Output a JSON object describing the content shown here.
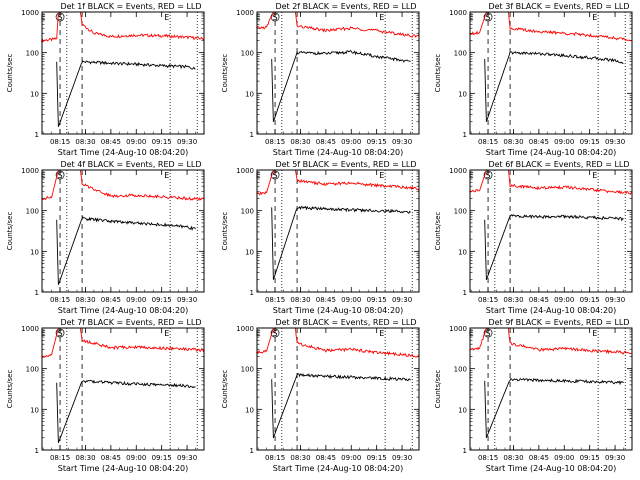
{
  "chart_data": [
    {
      "type": "line",
      "title": "Det 1f BLACK = Events, RED = LLD",
      "xlabel": "Start Time (24-Aug-10 08:04:20)",
      "ylabel": "Counts/sec",
      "x_ticks": [
        "08:15",
        "08:30",
        "08:45",
        "09:00",
        "09:15",
        "09:30"
      ],
      "y_ticks": [
        "1",
        "10",
        "100",
        "1000"
      ],
      "yscale": "log",
      "ylim": [
        1,
        1000
      ],
      "xlim": [
        "08:04:20",
        "09:40"
      ],
      "markers": [
        {
          "label": "E",
          "x": "08:05"
        },
        {
          "label": "S",
          "x": "08:15"
        },
        {
          "label": "E",
          "x": "09:18"
        }
      ],
      "series": [
        {
          "color": "#ff0000",
          "points": [
            [
              "08:04",
              200
            ],
            [
              "08:10",
              210
            ],
            [
              "08:13",
              220
            ],
            [
              "08:14",
              1000
            ],
            [
              "08:27",
              1000
            ],
            [
              "08:28",
              500
            ],
            [
              "08:35",
              300
            ],
            [
              "08:45",
              250
            ],
            [
              "09:00",
              270
            ],
            [
              "09:15",
              260
            ],
            [
              "09:30",
              240
            ],
            [
              "09:40",
              220
            ]
          ]
        },
        {
          "color": "#000000",
          "points": [
            [
              "08:13",
              60
            ],
            [
              "08:14",
              1.5
            ],
            [
              "08:28",
              60
            ],
            [
              "08:45",
              55
            ],
            [
              "09:00",
              52
            ],
            [
              "09:15",
              48
            ],
            [
              "09:30",
              45
            ],
            [
              "09:35",
              40
            ]
          ]
        }
      ]
    },
    {
      "type": "line",
      "title": "Det 2f BLACK = Events, RED = LLD",
      "xlabel": "Start Time (24-Aug-10 08:04:20)",
      "ylabel": "Counts/sec",
      "x_ticks": [
        "08:15",
        "08:30",
        "08:45",
        "09:00",
        "09:15",
        "09:30"
      ],
      "y_ticks": [
        "1",
        "10",
        "100",
        "1000"
      ],
      "yscale": "log",
      "ylim": [
        1,
        1000
      ],
      "xlim": [
        "08:04:20",
        "09:40"
      ],
      "markers": [
        {
          "label": "E",
          "x": "08:05"
        },
        {
          "label": "S",
          "x": "08:15"
        },
        {
          "label": "E",
          "x": "09:18"
        }
      ],
      "series": [
        {
          "color": "#ff0000",
          "points": [
            [
              "08:04",
              400
            ],
            [
              "08:10",
              420
            ],
            [
              "08:14",
              1000
            ],
            [
              "08:27",
              1000
            ],
            [
              "08:28",
              450
            ],
            [
              "08:45",
              350
            ],
            [
              "09:00",
              400
            ],
            [
              "09:15",
              350
            ],
            [
              "09:30",
              280
            ],
            [
              "09:40",
              250
            ]
          ]
        },
        {
          "color": "#000000",
          "points": [
            [
              "08:13",
              70
            ],
            [
              "08:14",
              2
            ],
            [
              "08:28",
              100
            ],
            [
              "08:45",
              95
            ],
            [
              "09:00",
              105
            ],
            [
              "09:15",
              80
            ],
            [
              "09:30",
              65
            ],
            [
              "09:35",
              60
            ]
          ]
        }
      ]
    },
    {
      "type": "line",
      "title": "Det 3f BLACK = Events, RED = LLD",
      "xlabel": "Start Time (24-Aug-10 08:04:20)",
      "ylabel": "Counts/sec",
      "x_ticks": [
        "08:15",
        "08:30",
        "08:45",
        "09:00",
        "09:15",
        "09:30"
      ],
      "y_ticks": [
        "1",
        "10",
        "100",
        "1000"
      ],
      "yscale": "log",
      "ylim": [
        1,
        1000
      ],
      "xlim": [
        "08:04:20",
        "09:40"
      ],
      "markers": [
        {
          "label": "E",
          "x": "08:05"
        },
        {
          "label": "S",
          "x": "08:15"
        },
        {
          "label": "E",
          "x": "09:18"
        }
      ],
      "series": [
        {
          "color": "#ff0000",
          "points": [
            [
              "08:04",
              300
            ],
            [
              "08:10",
              310
            ],
            [
              "08:14",
              1000
            ],
            [
              "08:27",
              1000
            ],
            [
              "08:28",
              400
            ],
            [
              "08:45",
              330
            ],
            [
              "09:00",
              300
            ],
            [
              "09:15",
              270
            ],
            [
              "09:30",
              230
            ],
            [
              "09:40",
              200
            ]
          ]
        },
        {
          "color": "#000000",
          "points": [
            [
              "08:13",
              70
            ],
            [
              "08:14",
              2
            ],
            [
              "08:28",
              100
            ],
            [
              "08:45",
              95
            ],
            [
              "09:00",
              85
            ],
            [
              "09:15",
              75
            ],
            [
              "09:30",
              65
            ],
            [
              "09:35",
              55
            ]
          ]
        }
      ]
    },
    {
      "type": "line",
      "title": "Det 4f BLACK = Events, RED = LLD",
      "xlabel": "Start Time (24-Aug-10 08:04:20)",
      "ylabel": "Counts/sec",
      "x_ticks": [
        "08:15",
        "08:30",
        "08:45",
        "09:00",
        "09:15",
        "09:30"
      ],
      "y_ticks": [
        "1",
        "10",
        "100",
        "1000"
      ],
      "yscale": "log",
      "ylim": [
        1,
        1000
      ],
      "xlim": [
        "08:04:20",
        "09:40"
      ],
      "markers": [
        {
          "label": "E",
          "x": "08:05"
        },
        {
          "label": "S",
          "x": "08:15"
        },
        {
          "label": "E",
          "x": "09:18"
        }
      ],
      "series": [
        {
          "color": "#ff0000",
          "points": [
            [
              "08:04",
              200
            ],
            [
              "08:10",
              210
            ],
            [
              "08:14",
              1000
            ],
            [
              "08:27",
              1000
            ],
            [
              "08:28",
              450
            ],
            [
              "08:45",
              230
            ],
            [
              "09:00",
              240
            ],
            [
              "09:15",
              220
            ],
            [
              "09:30",
              200
            ],
            [
              "09:40",
              190
            ]
          ]
        },
        {
          "color": "#000000",
          "points": [
            [
              "08:13",
              60
            ],
            [
              "08:14",
              1.5
            ],
            [
              "08:28",
              65
            ],
            [
              "08:45",
              55
            ],
            [
              "09:00",
              50
            ],
            [
              "09:15",
              45
            ],
            [
              "09:30",
              40
            ],
            [
              "09:35",
              35
            ]
          ]
        }
      ]
    },
    {
      "type": "line",
      "title": "Det 5f BLACK = Events, RED = LLD",
      "xlabel": "Start Time (24-Aug-10 08:04:20)",
      "ylabel": "Counts/sec",
      "x_ticks": [
        "08:15",
        "08:30",
        "08:45",
        "09:00",
        "09:15",
        "09:30"
      ],
      "y_ticks": [
        "1",
        "10",
        "100",
        "1000"
      ],
      "yscale": "log",
      "ylim": [
        1,
        1000
      ],
      "xlim": [
        "08:04:20",
        "09:40"
      ],
      "markers": [
        {
          "label": "E",
          "x": "08:05"
        },
        {
          "label": "S",
          "x": "08:15"
        },
        {
          "label": "E",
          "x": "09:18"
        }
      ],
      "series": [
        {
          "color": "#ff0000",
          "points": [
            [
              "08:04",
              250
            ],
            [
              "08:10",
              280
            ],
            [
              "08:14",
              1000
            ],
            [
              "08:27",
              1000
            ],
            [
              "08:28",
              550
            ],
            [
              "08:45",
              450
            ],
            [
              "09:00",
              480
            ],
            [
              "09:15",
              420
            ],
            [
              "09:30",
              380
            ],
            [
              "09:40",
              350
            ]
          ]
        },
        {
          "color": "#000000",
          "points": [
            [
              "08:13",
              120
            ],
            [
              "08:14",
              2
            ],
            [
              "08:28",
              120
            ],
            [
              "08:45",
              110
            ],
            [
              "09:00",
              105
            ],
            [
              "09:15",
              100
            ],
            [
              "09:30",
              95
            ],
            [
              "09:35",
              90
            ]
          ]
        }
      ]
    },
    {
      "type": "line",
      "title": "Det 6f BLACK = Events, RED = LLD",
      "xlabel": "Start Time (24-Aug-10 08:04:20)",
      "ylabel": "Counts/sec",
      "x_ticks": [
        "08:15",
        "08:30",
        "08:45",
        "09:00",
        "09:15",
        "09:30"
      ],
      "y_ticks": [
        "1",
        "10",
        "100",
        "1000"
      ],
      "yscale": "log",
      "ylim": [
        1,
        1000
      ],
      "xlim": [
        "08:04:20",
        "09:40"
      ],
      "markers": [
        {
          "label": "E",
          "x": "08:05"
        },
        {
          "label": "S",
          "x": "08:15"
        },
        {
          "label": "E",
          "x": "09:18"
        }
      ],
      "series": [
        {
          "color": "#ff0000",
          "points": [
            [
              "08:04",
              300
            ],
            [
              "08:10",
              310
            ],
            [
              "08:14",
              1000
            ],
            [
              "08:27",
              1000
            ],
            [
              "08:28",
              420
            ],
            [
              "08:45",
              360
            ],
            [
              "09:00",
              380
            ],
            [
              "09:15",
              330
            ],
            [
              "09:30",
              290
            ],
            [
              "09:40",
              270
            ]
          ]
        },
        {
          "color": "#000000",
          "points": [
            [
              "08:13",
              60
            ],
            [
              "08:14",
              2
            ],
            [
              "08:28",
              75
            ],
            [
              "08:45",
              70
            ],
            [
              "09:00",
              72
            ],
            [
              "09:15",
              68
            ],
            [
              "09:30",
              65
            ],
            [
              "09:35",
              62
            ]
          ]
        }
      ]
    },
    {
      "type": "line",
      "title": "Det 7f BLACK = Events, RED = LLD",
      "xlabel": "Start Time (24-Aug-10 08:04:20)",
      "ylabel": "Counts/sec",
      "x_ticks": [
        "08:15",
        "08:30",
        "08:45",
        "09:00",
        "09:15",
        "09:30"
      ],
      "y_ticks": [
        "1",
        "10",
        "100",
        "1000"
      ],
      "yscale": "log",
      "ylim": [
        1,
        1000
      ],
      "xlim": [
        "08:04:20",
        "09:40"
      ],
      "markers": [
        {
          "label": "E",
          "x": "08:05"
        },
        {
          "label": "S",
          "x": "08:15"
        },
        {
          "label": "E",
          "x": "09:18"
        }
      ],
      "series": [
        {
          "color": "#ff0000",
          "points": [
            [
              "08:04",
              200
            ],
            [
              "08:10",
              220
            ],
            [
              "08:14",
              1000
            ],
            [
              "08:27",
              1000
            ],
            [
              "08:28",
              500
            ],
            [
              "08:45",
              330
            ],
            [
              "09:00",
              340
            ],
            [
              "09:15",
              320
            ],
            [
              "09:30",
              300
            ],
            [
              "09:40",
              290
            ]
          ]
        },
        {
          "color": "#000000",
          "points": [
            [
              "08:13",
              45
            ],
            [
              "08:14",
              1.5
            ],
            [
              "08:28",
              50
            ],
            [
              "08:45",
              45
            ],
            [
              "09:00",
              42
            ],
            [
              "09:15",
              40
            ],
            [
              "09:30",
              38
            ],
            [
              "09:35",
              36
            ]
          ]
        }
      ]
    },
    {
      "type": "line",
      "title": "Det 8f BLACK = Events, RED = LLD",
      "xlabel": "Start Time (24-Aug-10 08:04:20)",
      "ylabel": "Counts/sec",
      "x_ticks": [
        "08:15",
        "08:30",
        "08:45",
        "09:00",
        "09:15",
        "09:30"
      ],
      "y_ticks": [
        "1",
        "10",
        "100",
        "1000"
      ],
      "yscale": "log",
      "ylim": [
        1,
        1000
      ],
      "xlim": [
        "08:04:20",
        "09:40"
      ],
      "markers": [
        {
          "label": "E",
          "x": "08:05"
        },
        {
          "label": "S",
          "x": "08:15"
        },
        {
          "label": "E",
          "x": "09:18"
        }
      ],
      "series": [
        {
          "color": "#ff0000",
          "points": [
            [
              "08:04",
              250
            ],
            [
              "08:10",
              270
            ],
            [
              "08:14",
              1000
            ],
            [
              "08:27",
              1000
            ],
            [
              "08:28",
              420
            ],
            [
              "08:45",
              280
            ],
            [
              "09:00",
              300
            ],
            [
              "09:15",
              250
            ],
            [
              "09:30",
              220
            ],
            [
              "09:40",
              200
            ]
          ]
        },
        {
          "color": "#000000",
          "points": [
            [
              "08:13",
              55
            ],
            [
              "08:14",
              2
            ],
            [
              "08:28",
              70
            ],
            [
              "08:45",
              65
            ],
            [
              "09:00",
              62
            ],
            [
              "09:15",
              58
            ],
            [
              "09:30",
              55
            ],
            [
              "09:35",
              52
            ]
          ]
        }
      ]
    },
    {
      "type": "line",
      "title": "Det 9f BLACK = Events, RED = LLD",
      "xlabel": "Start Time (24-Aug-10 08:04:20)",
      "ylabel": "Counts/sec",
      "x_ticks": [
        "08:15",
        "08:30",
        "08:45",
        "09:00",
        "09:15",
        "09:30"
      ],
      "y_ticks": [
        "1",
        "10",
        "100",
        "1000"
      ],
      "yscale": "log",
      "ylim": [
        1,
        1000
      ],
      "xlim": [
        "08:04:20",
        "09:40"
      ],
      "markers": [
        {
          "label": "E",
          "x": "08:05"
        },
        {
          "label": "S",
          "x": "08:15"
        },
        {
          "label": "E",
          "x": "09:18"
        }
      ],
      "series": [
        {
          "color": "#ff0000",
          "points": [
            [
              "08:04",
              300
            ],
            [
              "08:10",
              320
            ],
            [
              "08:14",
              1000
            ],
            [
              "08:27",
              1000
            ],
            [
              "08:28",
              420
            ],
            [
              "08:45",
              290
            ],
            [
              "09:00",
              310
            ],
            [
              "09:15",
              280
            ],
            [
              "09:30",
              260
            ],
            [
              "09:40",
              240
            ]
          ]
        },
        {
          "color": "#000000",
          "points": [
            [
              "08:13",
              50
            ],
            [
              "08:14",
              2
            ],
            [
              "08:28",
              55
            ],
            [
              "08:45",
              52
            ],
            [
              "09:00",
              50
            ],
            [
              "09:15",
              48
            ],
            [
              "09:30",
              46
            ],
            [
              "09:35",
              45
            ]
          ]
        }
      ]
    }
  ]
}
